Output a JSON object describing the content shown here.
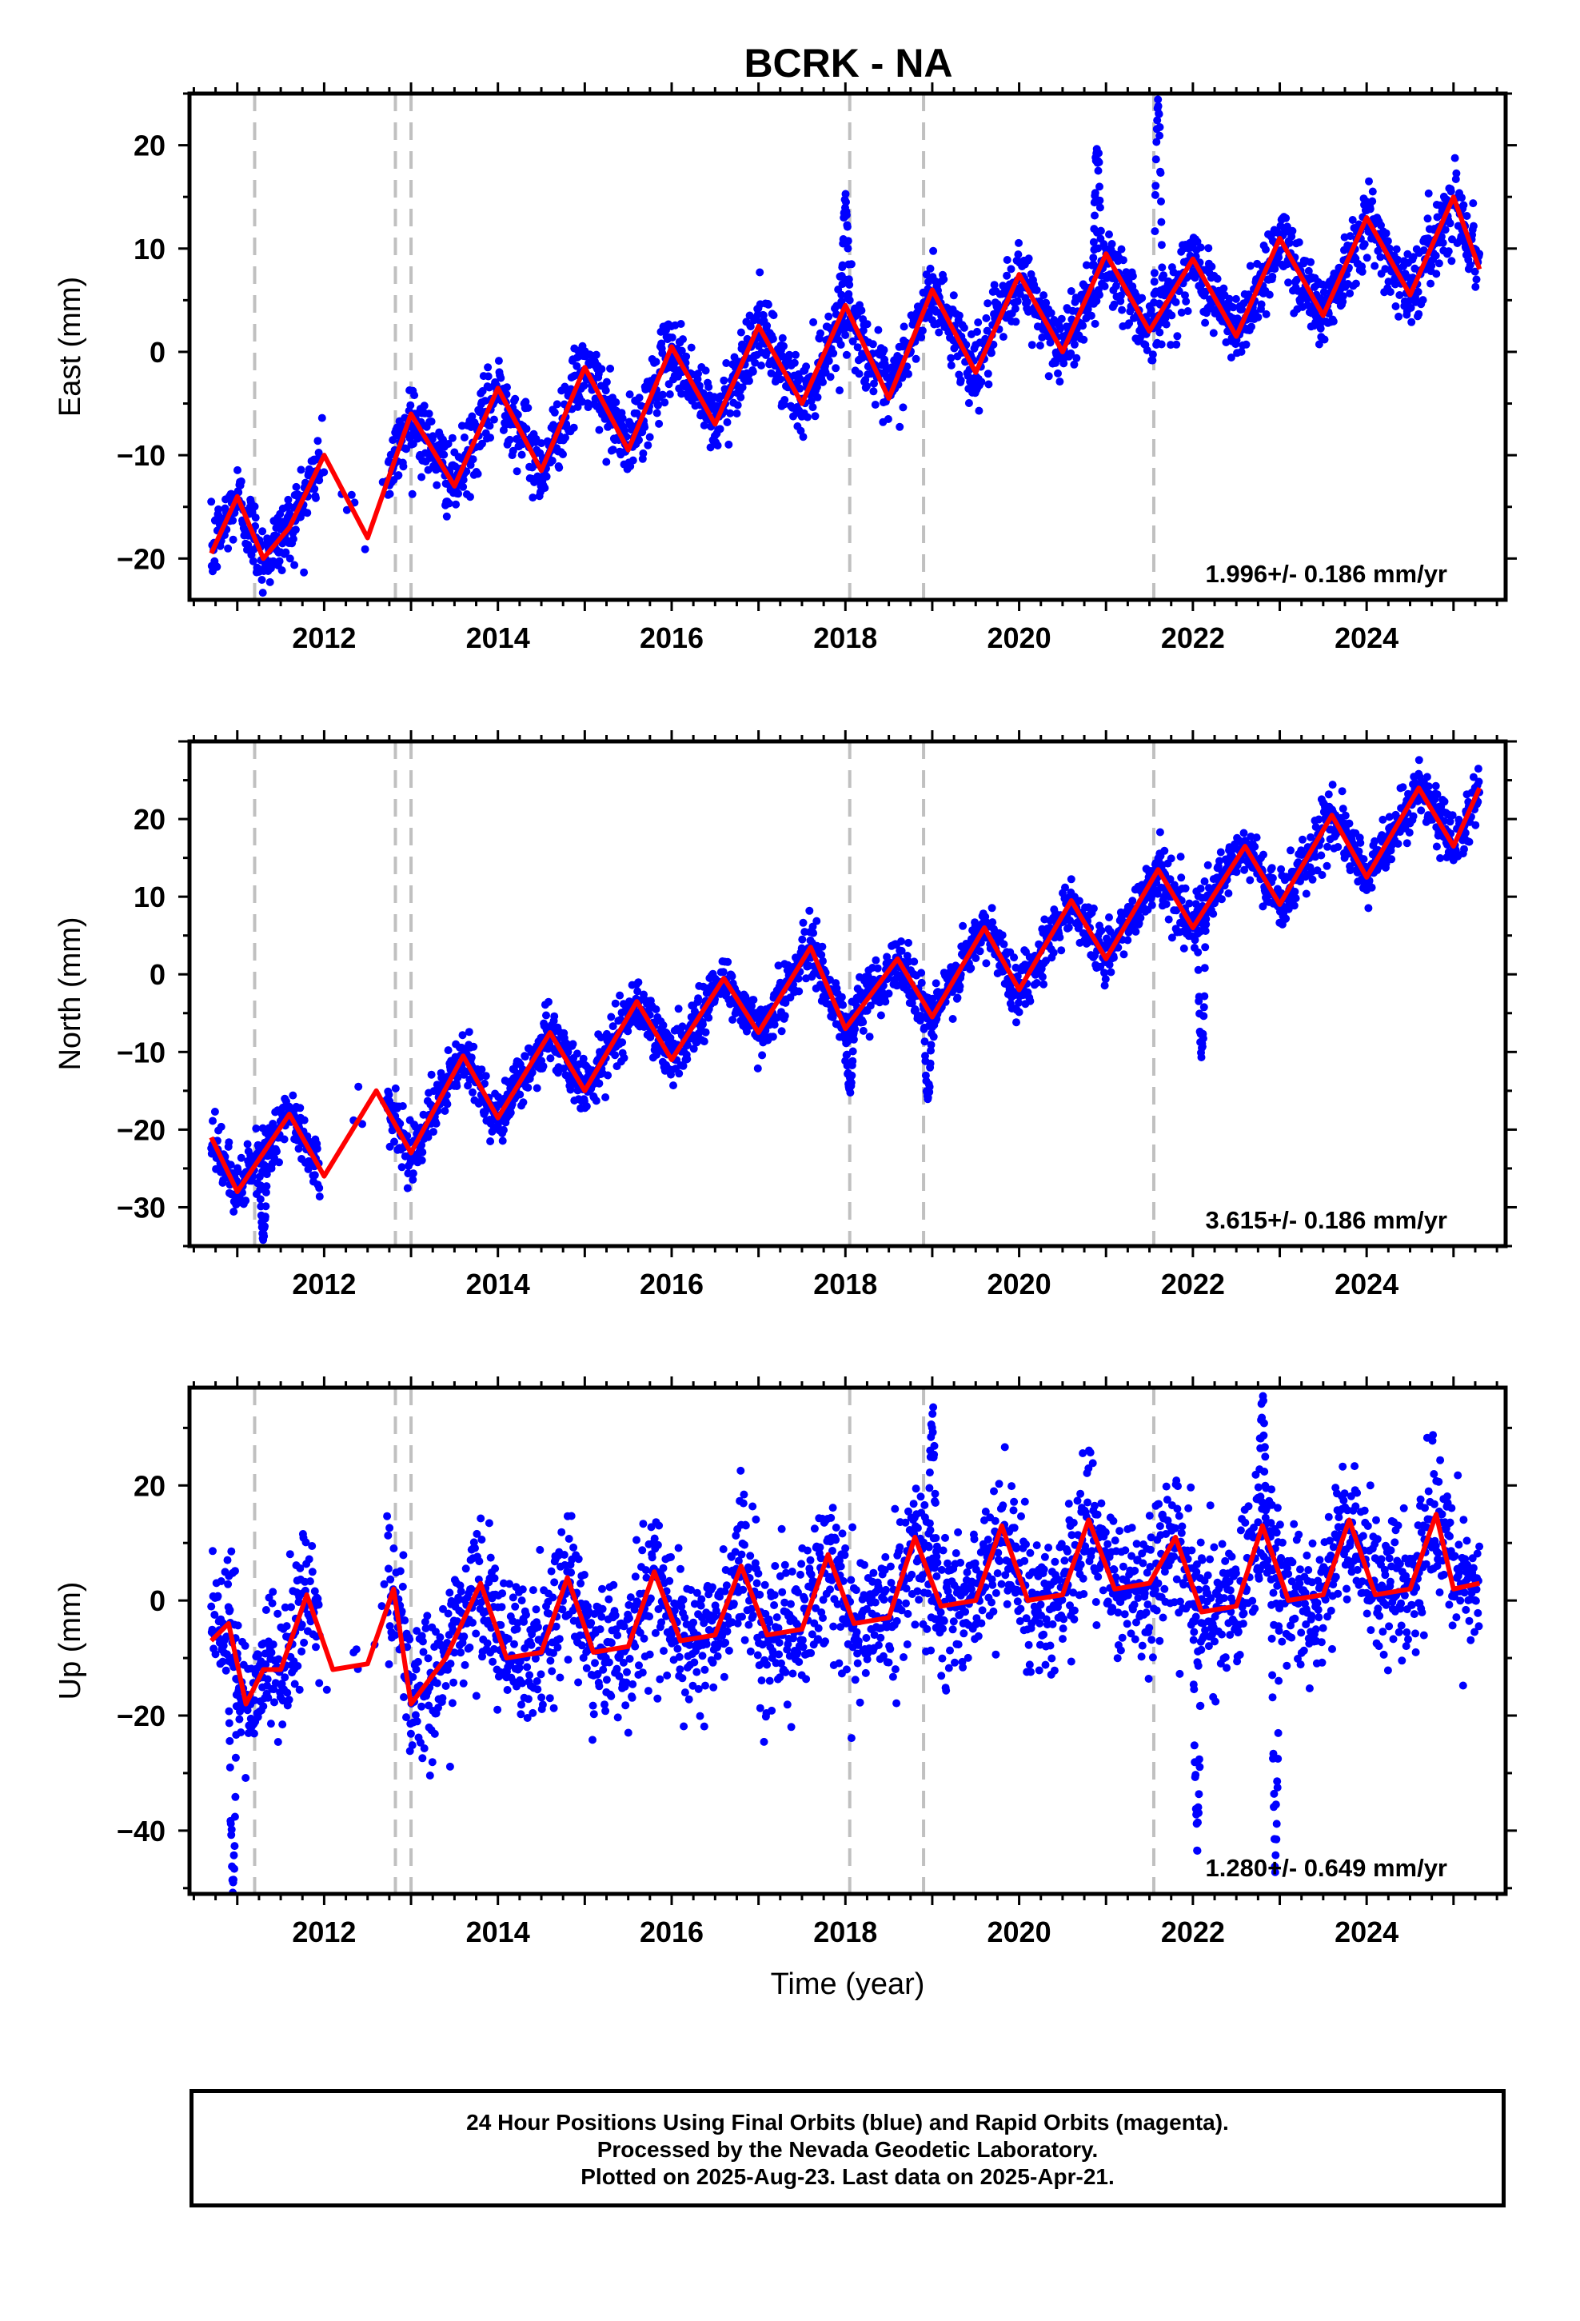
{
  "title": "BCRK - NA",
  "colors": {
    "points": "#0000ff",
    "trend": "#ff0000",
    "breaks": "#c0c0c0",
    "frame": "#000000"
  },
  "chart_data": [
    {
      "type": "scatter",
      "panel": "east",
      "ylabel": "East (mm)",
      "xlabel": "",
      "xlim": [
        2010.45,
        2025.6
      ],
      "ylim": [
        -24,
        25
      ],
      "xticks": [
        2012,
        2014,
        2016,
        2018,
        2020,
        2022,
        2024
      ],
      "yticks": [
        -20,
        -10,
        0,
        10,
        20
      ],
      "rate_label": "1.996+/- 0.186 mm/yr",
      "breaks": [
        2011.2,
        2012.82,
        2013.0,
        2018.05,
        2018.9,
        2021.55
      ],
      "grid": false,
      "model": {
        "rate": 2.0,
        "offset_at_t0": -19.5,
        "t0": 2010.7,
        "annual_amp": 3.6,
        "annual_phase_year_frac": 0.0,
        "segments": [
          [
            2010.7,
            2021.55,
            0
          ],
          [
            2021.55,
            2025.3,
            -0.5
          ]
        ],
        "noise": 1.8,
        "spikes": [
          [
            2020.9,
            20
          ],
          [
            2021.6,
            24
          ],
          [
            2018.0,
            14
          ]
        ]
      },
      "series": [
        {
          "name": "",
          "kind": "trend",
          "x": [
            2010.7,
            2011.0,
            2011.3,
            2011.6,
            2012.0,
            2012.5,
            2013.0,
            2013.5,
            2014.0,
            2014.5,
            2015.0,
            2015.5,
            2016.0,
            2016.5,
            2017.0,
            2017.5,
            2018.0,
            2018.5,
            2019.0,
            2019.5,
            2020.0,
            2020.5,
            2021.0,
            2021.5,
            2022.0,
            2022.5,
            2023.0,
            2023.5,
            2024.0,
            2024.5,
            2025.0,
            2025.3
          ],
          "y": [
            -19.5,
            -14,
            -20,
            -17,
            -10,
            -18,
            -6,
            -13,
            -3.5,
            -11.5,
            -1.5,
            -9.5,
            0.5,
            -7,
            2.5,
            -5,
            4.5,
            -4.5,
            6,
            -2,
            7.5,
            0,
            9.5,
            2,
            9,
            1.5,
            11,
            3.5,
            13,
            5.5,
            15,
            8
          ]
        }
      ]
    },
    {
      "type": "scatter",
      "panel": "north",
      "ylabel": "North (mm)",
      "xlabel": "",
      "xlim": [
        2010.45,
        2025.6
      ],
      "ylim": [
        -35,
        30
      ],
      "xticks": [
        2012,
        2014,
        2016,
        2018,
        2020,
        2022,
        2024
      ],
      "yticks": [
        -30,
        -20,
        -10,
        0,
        10,
        20
      ],
      "rate_label": "3.615+/- 0.186 mm/yr",
      "breaks": [
        2011.2,
        2012.82,
        2013.0,
        2018.05,
        2018.9,
        2021.55
      ],
      "grid": false,
      "model": {
        "rate": 3.6,
        "offset_at_t0": -22,
        "t0": 2010.7,
        "annual_amp": 3.5,
        "segments": [
          [
            2010.7,
            2025.3,
            0
          ]
        ],
        "noise": 1.8,
        "spikes": [
          [
            2022.1,
            -10
          ],
          [
            2011.3,
            -34
          ],
          [
            2018.05,
            -15
          ],
          [
            2018.95,
            -16
          ]
        ]
      },
      "series": [
        {
          "name": "",
          "kind": "trend",
          "x": [
            2010.7,
            2011.0,
            2011.6,
            2012.0,
            2012.6,
            2013.0,
            2013.6,
            2014.0,
            2014.6,
            2015.0,
            2015.6,
            2016.0,
            2016.6,
            2017.0,
            2017.6,
            2018.0,
            2018.6,
            2019.0,
            2019.6,
            2020.0,
            2020.6,
            2021.0,
            2021.6,
            2022.0,
            2022.6,
            2023.0,
            2023.6,
            2024.0,
            2024.6,
            2025.0,
            2025.3
          ],
          "y": [
            -21,
            -28,
            -18,
            -26,
            -15,
            -23,
            -10.5,
            -18.5,
            -7.5,
            -15,
            -3.5,
            -11,
            -0.5,
            -7.5,
            3.5,
            -7,
            2,
            -5.5,
            6,
            -2,
            9.5,
            2,
            13.5,
            6,
            16.5,
            9,
            20.5,
            12.5,
            24,
            16.5,
            24
          ]
        }
      ]
    },
    {
      "type": "scatter",
      "panel": "up",
      "ylabel": "Up (mm)",
      "xlabel": "Time (year)",
      "xlim": [
        2010.45,
        2025.6
      ],
      "ylim": [
        -51,
        37
      ],
      "xticks": [
        2012,
        2014,
        2016,
        2018,
        2020,
        2022,
        2024
      ],
      "yticks": [
        -40,
        -20,
        0,
        20
      ],
      "rate_label": "1.280+/- 0.649 mm/yr",
      "breaks": [
        2011.2,
        2012.82,
        2013.0,
        2018.05,
        2018.9,
        2021.55
      ],
      "grid": false,
      "model": {
        "rate": 1.28,
        "offset_at_t0": -8,
        "t0": 2010.7,
        "annual_amp": 7,
        "segments": [
          [
            2010.7,
            2025.3,
            0
          ]
        ],
        "noise": 6,
        "spikes": [
          [
            2010.95,
            -49
          ],
          [
            2022.05,
            -42
          ],
          [
            2022.95,
            -43
          ],
          [
            2022.8,
            35
          ],
          [
            2019.0,
            31
          ]
        ]
      },
      "series": [
        {
          "name": "",
          "kind": "trend",
          "x": [
            2010.7,
            2010.9,
            2011.1,
            2011.3,
            2011.5,
            2011.8,
            2012.1,
            2012.5,
            2012.8,
            2013.0,
            2013.4,
            2013.8,
            2014.1,
            2014.5,
            2014.8,
            2015.1,
            2015.5,
            2015.8,
            2016.1,
            2016.5,
            2016.8,
            2017.1,
            2017.5,
            2017.8,
            2018.1,
            2018.5,
            2018.8,
            2019.1,
            2019.5,
            2019.8,
            2020.1,
            2020.5,
            2020.8,
            2021.1,
            2021.5,
            2021.8,
            2022.1,
            2022.5,
            2022.8,
            2023.1,
            2023.5,
            2023.8,
            2024.1,
            2024.5,
            2024.8,
            2025.0,
            2025.3
          ],
          "y": [
            -7,
            -4,
            -18,
            -12,
            -12,
            1,
            -12,
            -11,
            2,
            -18,
            -10,
            3,
            -10,
            -9,
            4,
            -9,
            -8,
            5,
            -7,
            -6,
            6,
            -6,
            -5,
            8,
            -4,
            -3,
            11,
            -1,
            0,
            13,
            0,
            1,
            14,
            2,
            3,
            11,
            -2,
            -1,
            13,
            0,
            1,
            14,
            1,
            2,
            15,
            2,
            3
          ]
        }
      ]
    }
  ],
  "footer": {
    "line1": "24 Hour Positions Using Final Orbits (blue) and Rapid Orbits (magenta).",
    "line2": "Processed by the Nevada Geodetic Laboratory.",
    "line3": "Plotted on 2025-Aug-23. Last data on 2025-Apr-21."
  }
}
